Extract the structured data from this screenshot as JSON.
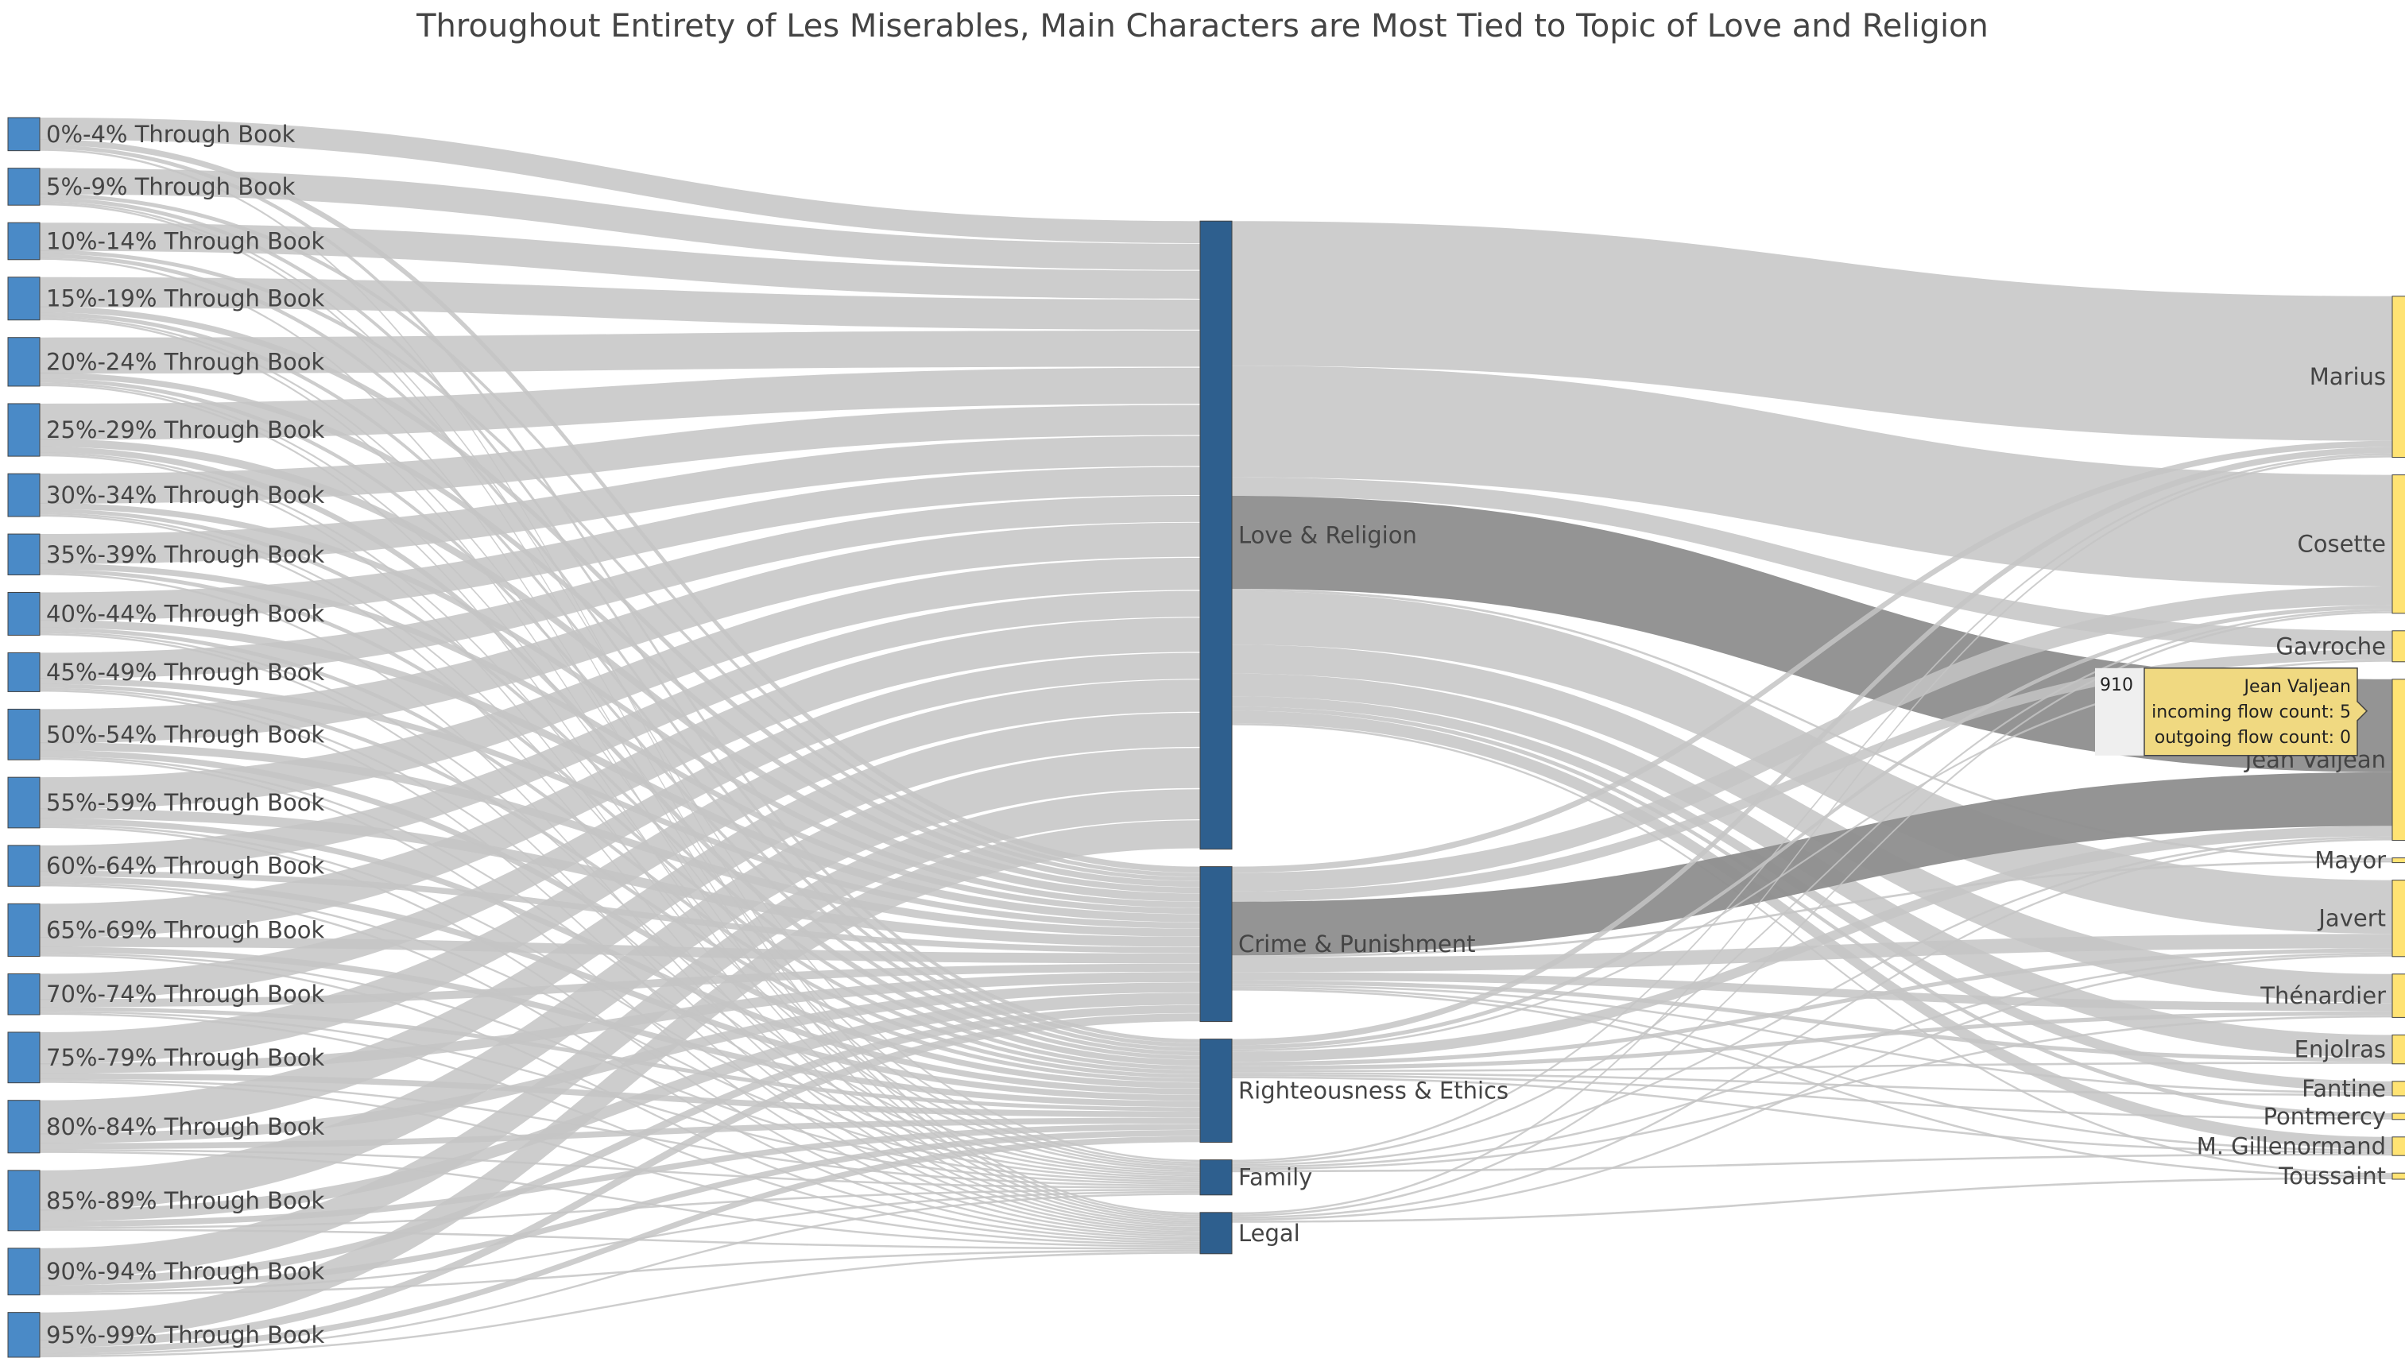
{
  "chart_data": {
    "type": "sankey",
    "title": "Throughout Entirety of Les Miserables, Main Characters are Most Tied to Topic of Love and Religion",
    "colors": {
      "segment_node": "#4a8ac7",
      "topic_node": "#2e5f8e",
      "character_node": "#ffe373",
      "link": "#c4c4c4",
      "highlight_link": "#8e8e8e"
    },
    "segments": [
      {
        "label": "0%-4% Through Book",
        "love": 11,
        "crime": 3,
        "righteousness": 2,
        "family": 0,
        "legal": 1
      },
      {
        "label": "5%-9% Through Book",
        "love": 13,
        "crime": 2,
        "righteousness": 2,
        "family": 1,
        "legal": 1
      },
      {
        "label": "10%-14% Through Book",
        "love": 14,
        "crime": 2,
        "righteousness": 2,
        "family": 0,
        "legal": 1
      },
      {
        "label": "15%-19% Through Book",
        "love": 15,
        "crime": 3,
        "righteousness": 2,
        "family": 1,
        "legal": 1
      },
      {
        "label": "20%-24% Through Book",
        "love": 18,
        "crime": 3,
        "righteousness": 2,
        "family": 1,
        "legal": 1
      },
      {
        "label": "25%-29% Through Book",
        "love": 18,
        "crime": 4,
        "righteousness": 3,
        "family": 1,
        "legal": 1
      },
      {
        "label": "30%-34% Through Book",
        "love": 15,
        "crime": 3,
        "righteousness": 2,
        "family": 1,
        "legal": 1
      },
      {
        "label": "35%-39% Through Book",
        "love": 15,
        "crime": 3,
        "righteousness": 2,
        "family": 0,
        "legal": 1
      },
      {
        "label": "40%-44% Through Book",
        "love": 14,
        "crime": 4,
        "righteousness": 2,
        "family": 1,
        "legal": 1
      },
      {
        "label": "45%-49% Through Book",
        "love": 13,
        "crime": 3,
        "righteousness": 2,
        "family": 1,
        "legal": 1
      },
      {
        "label": "50%-54% Through Book",
        "love": 17,
        "crime": 4,
        "righteousness": 3,
        "family": 1,
        "legal": 1
      },
      {
        "label": "55%-59% Through Book",
        "love": 16,
        "crime": 5,
        "righteousness": 3,
        "family": 1,
        "legal": 1
      },
      {
        "label": "60%-64% Through Book",
        "love": 13,
        "crime": 3,
        "righteousness": 3,
        "family": 1,
        "legal": 1
      },
      {
        "label": "65%-69% Through Book",
        "love": 17,
        "crime": 5,
        "righteousness": 3,
        "family": 1,
        "legal": 1
      },
      {
        "label": "70%-74% Through Book",
        "love": 13,
        "crime": 4,
        "righteousness": 2,
        "family": 1,
        "legal": 1
      },
      {
        "label": "75%-79% Through Book",
        "love": 16,
        "crime": 5,
        "righteousness": 3,
        "family": 1,
        "legal": 1
      },
      {
        "label": "80%-84% Through Book",
        "love": 17,
        "crime": 5,
        "righteousness": 3,
        "family": 1,
        "legal": 1
      },
      {
        "label": "85%-89% Through Book",
        "love": 20,
        "crime": 6,
        "righteousness": 3,
        "family": 1,
        "legal": 1
      },
      {
        "label": "90%-94% Through Book",
        "love": 15,
        "crime": 4,
        "righteousness": 3,
        "family": 1,
        "legal": 1
      },
      {
        "label": "95%-99% Through Book",
        "love": 14,
        "crime": 4,
        "righteousness": 3,
        "family": 1,
        "legal": 1
      }
    ],
    "topics": [
      {
        "key": "love",
        "label": "Love & Religion"
      },
      {
        "key": "crime",
        "label": "Crime & Punishment"
      },
      {
        "key": "righteousness",
        "label": "Righteousness & Ethics"
      },
      {
        "key": "family",
        "label": "Family"
      },
      {
        "key": "legal",
        "label": "Legal"
      }
    ],
    "characters": [
      {
        "label": "Marius",
        "love": 70,
        "crime": 3,
        "righteousness": 3,
        "family": 1,
        "legal": 1
      },
      {
        "label": "Cosette",
        "love": 54,
        "crime": 9,
        "righteousness": 2,
        "family": 1,
        "legal": 1
      },
      {
        "label": "Gavroche",
        "love": 9,
        "crime": 5,
        "righteousness": 1,
        "family": 0,
        "legal": 0
      },
      {
        "label": "Jean Valjean",
        "love": 45,
        "crime": 26,
        "righteousness": 5,
        "family": 1,
        "legal": 1
      },
      {
        "label": "Mayor",
        "love": 1,
        "crime": 1,
        "righteousness": 0,
        "family": 0,
        "legal": 0
      },
      {
        "label": "Javert",
        "love": 26,
        "crime": 7,
        "righteousness": 2,
        "family": 1,
        "legal": 1
      },
      {
        "label": "Thénardier",
        "love": 14,
        "crime": 4,
        "righteousness": 2,
        "family": 1,
        "legal": 0
      },
      {
        "label": "Enjolras",
        "love": 11,
        "crime": 2,
        "righteousness": 1,
        "family": 0,
        "legal": 0
      },
      {
        "label": "Fantine",
        "love": 5,
        "crime": 1,
        "righteousness": 1,
        "family": 0,
        "legal": 0
      },
      {
        "label": "Pontmercy",
        "love": 2,
        "crime": 0,
        "righteousness": 1,
        "family": 0,
        "legal": 0
      },
      {
        "label": "M. Gillenormand",
        "love": 6,
        "crime": 1,
        "righteousness": 1,
        "family": 1,
        "legal": 0
      },
      {
        "label": "Toussaint",
        "love": 1,
        "crime": 1,
        "righteousness": 0,
        "family": 0,
        "legal": 1
      }
    ],
    "highlight": [
      {
        "topic": "love",
        "character": "Jean Valjean"
      },
      {
        "topic": "crime",
        "character": "Jean Valjean"
      }
    ],
    "tooltip": {
      "value": "910",
      "title": "Jean Valjean",
      "line1": "incoming flow count: 5",
      "line2": "outgoing flow count: 0"
    }
  }
}
